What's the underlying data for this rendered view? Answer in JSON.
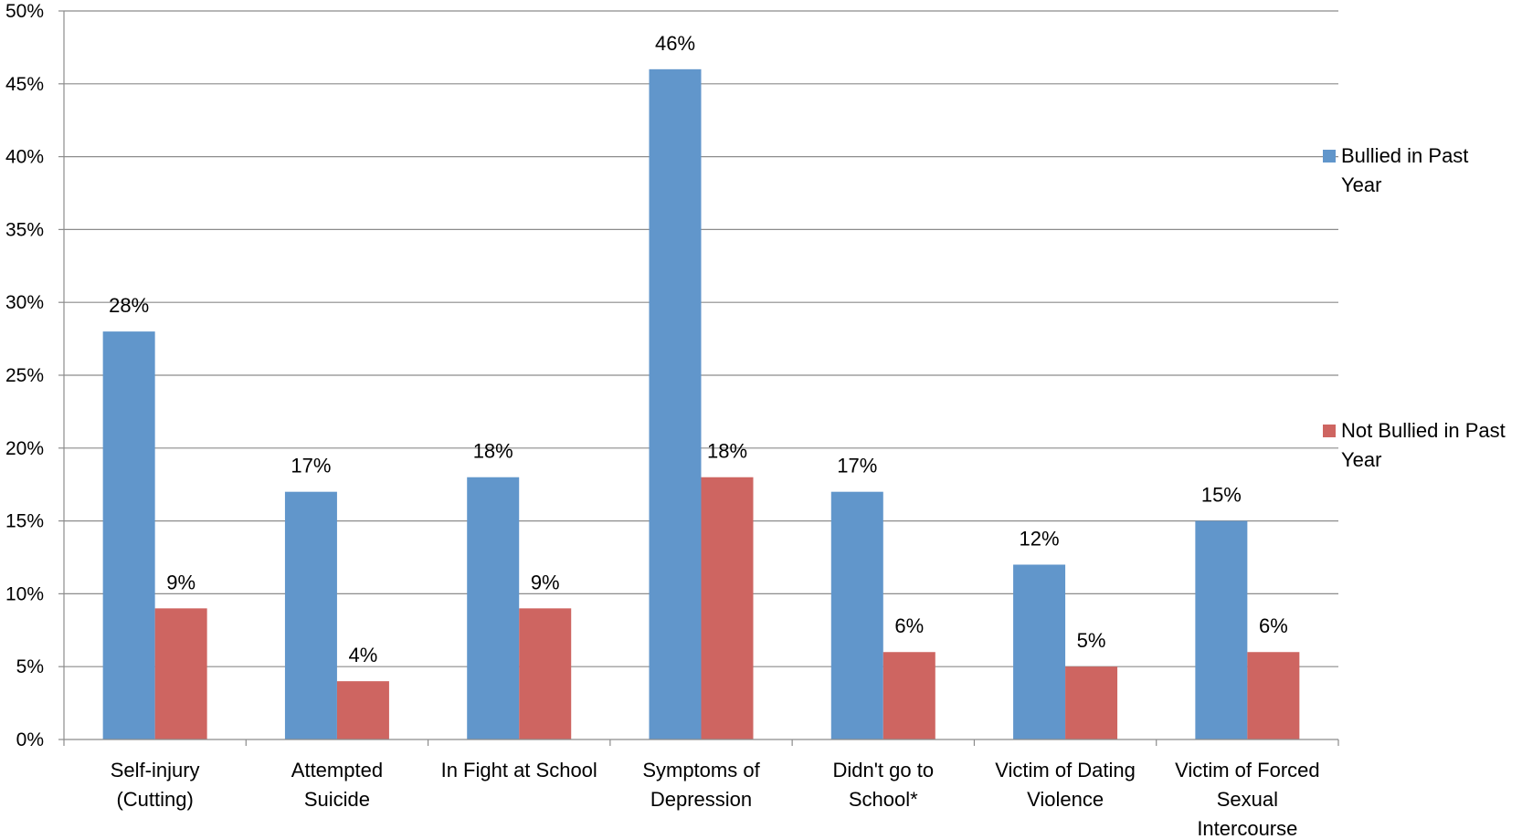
{
  "chart_data": {
    "type": "bar",
    "title": "",
    "xlabel": "",
    "ylabel": "",
    "ylim": [
      0,
      50
    ],
    "y_tick_step": 5,
    "y_tick_format": "{v}%",
    "grid": true,
    "legend_placement": "right",
    "categories": [
      [
        "Self-injury",
        "(Cutting)"
      ],
      [
        "Attempted",
        "Suicide"
      ],
      [
        "In Fight at School"
      ],
      [
        "Symptoms of",
        "Depression"
      ],
      [
        "Didn't go to",
        "School*"
      ],
      [
        "Victim of Dating",
        "Violence"
      ],
      [
        "Victim of Forced",
        "Sexual",
        "Intercourse"
      ]
    ],
    "series": [
      {
        "name": [
          "Bullied in Past",
          "Year"
        ],
        "color": "#6196CB",
        "values": [
          28,
          17,
          18,
          46,
          17,
          12,
          15
        ],
        "labels": [
          "28%",
          "17%",
          "18%",
          "46%",
          "17%",
          "12%",
          "15%"
        ]
      },
      {
        "name": [
          "Not Bullied in Past",
          "Year"
        ],
        "color": "#CE6561",
        "values": [
          9,
          4,
          9,
          18,
          6,
          5,
          6
        ],
        "labels": [
          "9%",
          "4%",
          "9%",
          "18%",
          "6%",
          "5%",
          "6%"
        ]
      }
    ]
  }
}
